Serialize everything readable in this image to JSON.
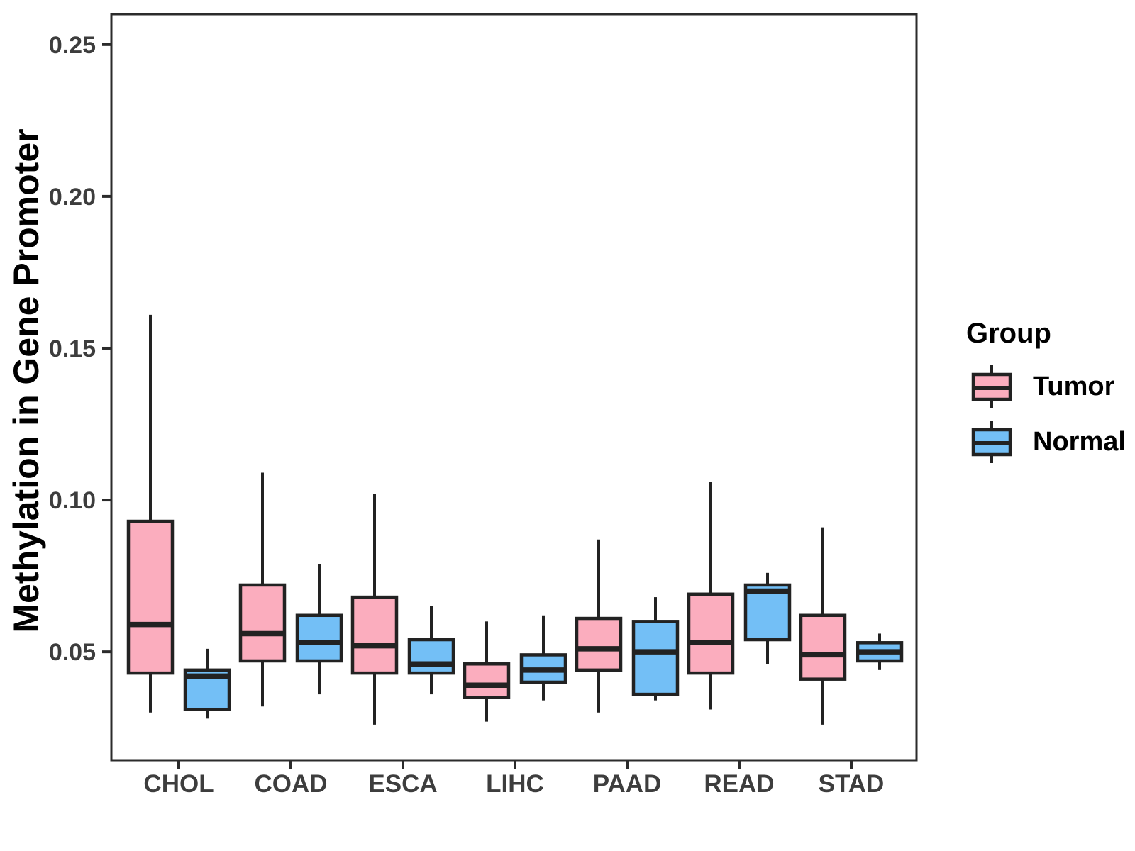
{
  "figure": {
    "ylabel": "Methylation in Gene Promoter",
    "legend_title": "Group"
  },
  "chart_data": {
    "type": "boxplot",
    "title": "",
    "xlabel": "",
    "ylabel": "Methylation in Gene Promoter",
    "categories": [
      "CHOL",
      "COAD",
      "ESCA",
      "LIHC",
      "PAAD",
      "READ",
      "STAD"
    ],
    "yticks": [
      0.05,
      0.1,
      0.15,
      0.2,
      0.25
    ],
    "ylim": [
      0.0143,
      0.26
    ],
    "grid": false,
    "legend_title": "Group",
    "legend_position": "right",
    "series": [
      {
        "name": "Tumor",
        "color": "#FBADBE",
        "boxes": [
          {
            "category": "CHOL",
            "whisker_low": 0.03,
            "q1": 0.043,
            "median": 0.059,
            "q3": 0.093,
            "whisker_high": 0.161
          },
          {
            "category": "COAD",
            "whisker_low": 0.032,
            "q1": 0.047,
            "median": 0.056,
            "q3": 0.072,
            "whisker_high": 0.109
          },
          {
            "category": "ESCA",
            "whisker_low": 0.026,
            "q1": 0.043,
            "median": 0.052,
            "q3": 0.068,
            "whisker_high": 0.102
          },
          {
            "category": "LIHC",
            "whisker_low": 0.027,
            "q1": 0.035,
            "median": 0.039,
            "q3": 0.046,
            "whisker_high": 0.06
          },
          {
            "category": "PAAD",
            "whisker_low": 0.03,
            "q1": 0.044,
            "median": 0.051,
            "q3": 0.061,
            "whisker_high": 0.087
          },
          {
            "category": "READ",
            "whisker_low": 0.031,
            "q1": 0.043,
            "median": 0.053,
            "q3": 0.069,
            "whisker_high": 0.106
          },
          {
            "category": "STAD",
            "whisker_low": 0.026,
            "q1": 0.041,
            "median": 0.049,
            "q3": 0.062,
            "whisker_high": 0.091
          }
        ]
      },
      {
        "name": "Normal",
        "color": "#73BFF6",
        "boxes": [
          {
            "category": "CHOL",
            "whisker_low": 0.028,
            "q1": 0.031,
            "median": 0.042,
            "q3": 0.044,
            "whisker_high": 0.051
          },
          {
            "category": "COAD",
            "whisker_low": 0.036,
            "q1": 0.047,
            "median": 0.053,
            "q3": 0.062,
            "whisker_high": 0.079
          },
          {
            "category": "ESCA",
            "whisker_low": 0.036,
            "q1": 0.043,
            "median": 0.046,
            "q3": 0.054,
            "whisker_high": 0.065
          },
          {
            "category": "LIHC",
            "whisker_low": 0.034,
            "q1": 0.04,
            "median": 0.044,
            "q3": 0.049,
            "whisker_high": 0.062
          },
          {
            "category": "PAAD",
            "whisker_low": 0.034,
            "q1": 0.036,
            "median": 0.05,
            "q3": 0.06,
            "whisker_high": 0.068
          },
          {
            "category": "READ",
            "whisker_low": 0.046,
            "q1": 0.054,
            "median": 0.07,
            "q3": 0.072,
            "whisker_high": 0.076
          },
          {
            "category": "STAD",
            "whisker_low": 0.044,
            "q1": 0.047,
            "median": 0.05,
            "q3": 0.053,
            "whisker_high": 0.056
          }
        ]
      }
    ],
    "style_colors": {
      "box_line": "#222222",
      "axis_line": "#2b2b2b",
      "tick_text": "#3d3d3d"
    }
  }
}
